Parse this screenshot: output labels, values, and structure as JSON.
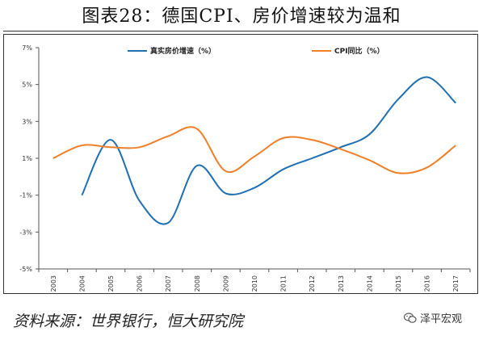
{
  "title": "图表28：德国CPI、房价增速较为温和",
  "source": "资料来源：世界银行，恒大研究院",
  "watermark": "泽平宏观",
  "watermark_icon": "wechat-icon",
  "chart_data": {
    "type": "line",
    "title": "图表28：德国CPI、房价增速较为温和",
    "xlabel": "",
    "ylabel": "",
    "categories": [
      "2003",
      "2004",
      "2005",
      "2006",
      "2007",
      "2008",
      "2009",
      "2010",
      "2011",
      "2012",
      "2013",
      "2014",
      "2015",
      "2016",
      "2017"
    ],
    "ylim": [
      -5,
      7
    ],
    "yticks": [
      -5,
      -3,
      -1,
      1,
      3,
      5,
      7
    ],
    "ytick_labels": [
      "-5%",
      "-3%",
      "-1%",
      "1%",
      "3%",
      "5%",
      "7%"
    ],
    "grid": false,
    "legend_position": "top",
    "series": [
      {
        "name": "真实房价增速（%）",
        "color": "#1f6fb2",
        "values": [
          null,
          -1.0,
          2.0,
          -1.3,
          -2.5,
          0.6,
          -0.9,
          -0.6,
          0.4,
          1.0,
          1.6,
          2.3,
          4.2,
          5.4,
          4.0
        ]
      },
      {
        "name": "CPI同比（%）",
        "color": "#f07f2a",
        "values": [
          1.0,
          1.7,
          1.6,
          1.6,
          2.2,
          2.6,
          0.3,
          1.1,
          2.1,
          2.0,
          1.5,
          0.9,
          0.2,
          0.5,
          1.7
        ]
      }
    ]
  }
}
